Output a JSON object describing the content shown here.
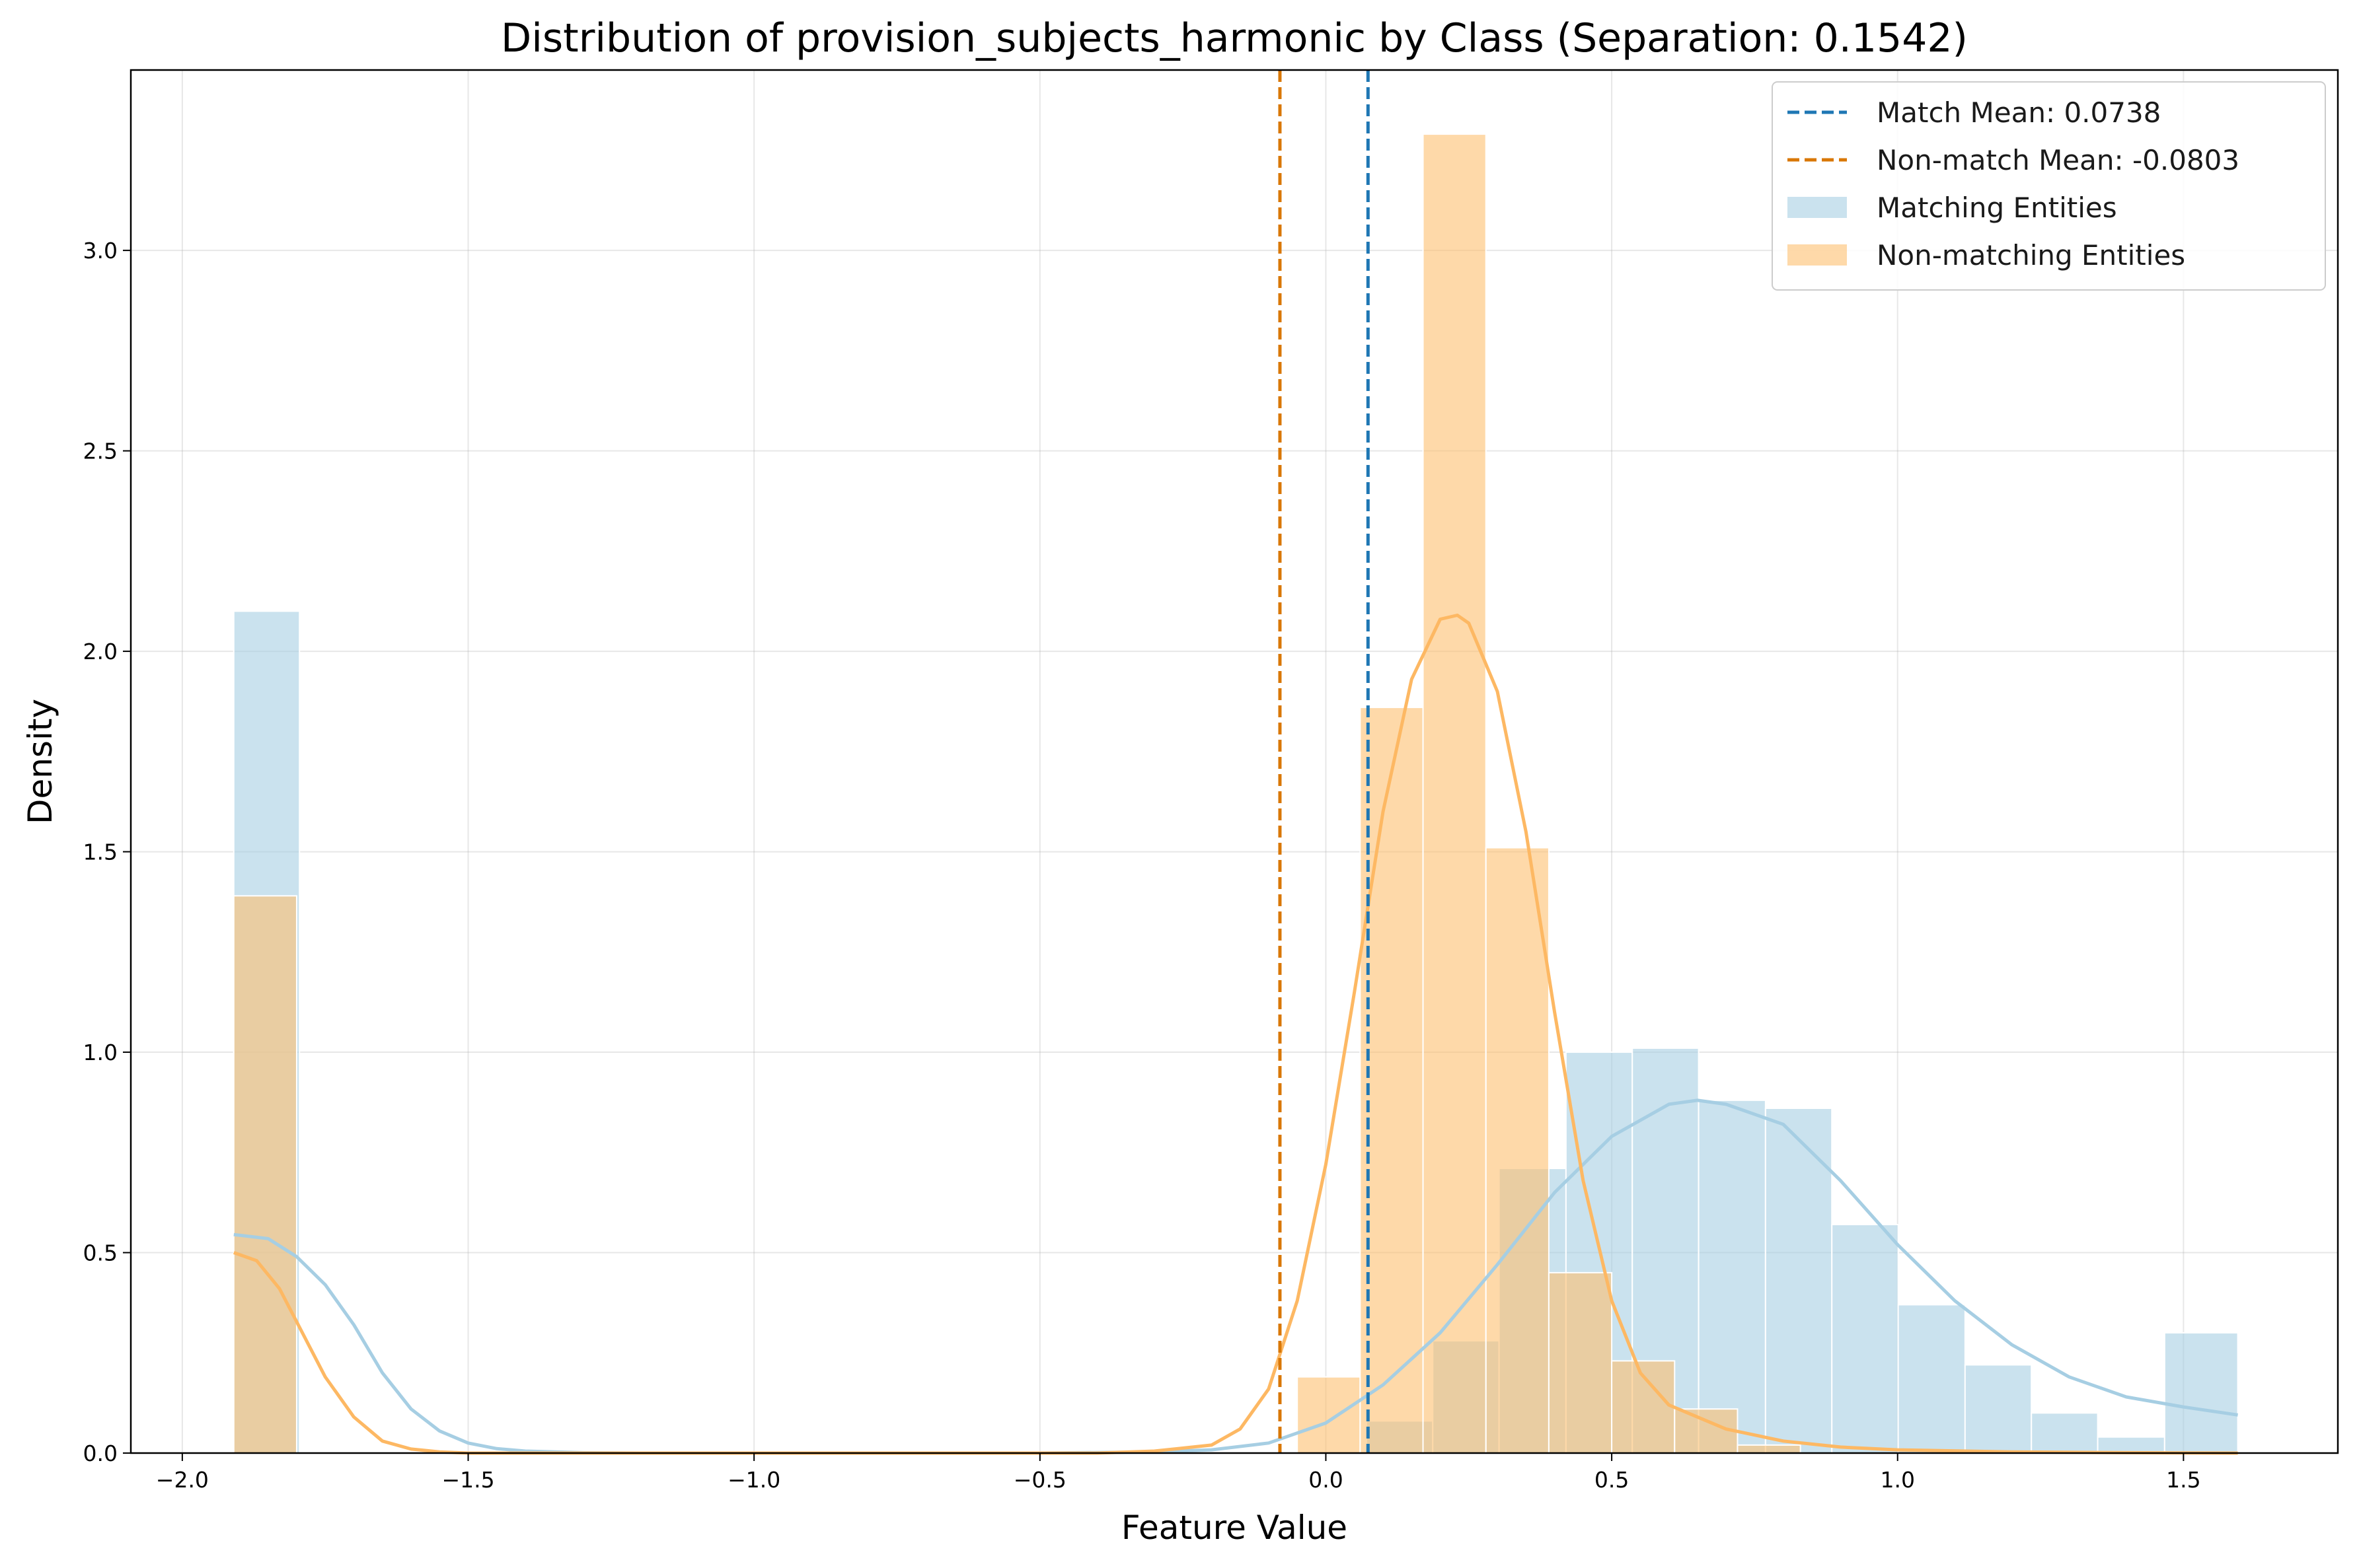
{
  "chart_data": {
    "type": "histogram",
    "title": "Distribution of provision_subjects_harmonic by Class (Separation: 0.1542)",
    "xlabel": "Feature Value",
    "ylabel": "Density",
    "xlim": [
      -2.09,
      1.77
    ],
    "ylim": [
      0,
      3.45
    ],
    "xticks": [
      -2.0,
      -1.5,
      -1.0,
      -0.5,
      0.0,
      0.5,
      1.0,
      1.5
    ],
    "xtick_labels": [
      "−2.0",
      "−1.5",
      "−1.0",
      "−0.5",
      "0.0",
      "0.5",
      "1.0",
      "1.5"
    ],
    "yticks": [
      0.0,
      0.5,
      1.0,
      1.5,
      2.0,
      2.5,
      3.0
    ],
    "ytick_labels": [
      "0.0",
      "0.5",
      "1.0",
      "1.5",
      "2.0",
      "2.5",
      "3.0"
    ],
    "grid": true,
    "legend_position": "top-right",
    "series": [
      {
        "name": "Matching Entities",
        "kind": "histogram",
        "color": "#a6cee3",
        "opacity": 0.6,
        "bins": [
          {
            "x0": -1.91,
            "x1": -1.795,
            "value": 2.1
          },
          {
            "x0": 0.071,
            "x1": 0.187,
            "value": 0.08
          },
          {
            "x0": 0.187,
            "x1": 0.303,
            "value": 0.28
          },
          {
            "x0": 0.303,
            "x1": 0.42,
            "value": 0.71
          },
          {
            "x0": 0.42,
            "x1": 0.536,
            "value": 1.0
          },
          {
            "x0": 0.536,
            "x1": 0.652,
            "value": 1.01
          },
          {
            "x0": 0.652,
            "x1": 0.769,
            "value": 0.88
          },
          {
            "x0": 0.769,
            "x1": 0.885,
            "value": 0.86
          },
          {
            "x0": 0.885,
            "x1": 1.001,
            "value": 0.57
          },
          {
            "x0": 1.001,
            "x1": 1.118,
            "value": 0.37
          },
          {
            "x0": 1.118,
            "x1": 1.234,
            "value": 0.22
          },
          {
            "x0": 1.234,
            "x1": 1.35,
            "value": 0.1
          },
          {
            "x0": 1.35,
            "x1": 1.467,
            "value": 0.04
          },
          {
            "x0": 1.467,
            "x1": 1.595,
            "value": 0.3
          }
        ]
      },
      {
        "name": "Non-matching Entities",
        "kind": "histogram",
        "color": "#fdbf6f",
        "opacity": 0.6,
        "bins": [
          {
            "x0": -1.91,
            "x1": -1.8,
            "value": 1.39
          },
          {
            "x0": -0.05,
            "x1": 0.06,
            "value": 0.19
          },
          {
            "x0": 0.06,
            "x1": 0.17,
            "value": 1.86
          },
          {
            "x0": 0.17,
            "x1": 0.28,
            "value": 3.29
          },
          {
            "x0": 0.28,
            "x1": 0.39,
            "value": 1.51
          },
          {
            "x0": 0.39,
            "x1": 0.5,
            "value": 0.45
          },
          {
            "x0": 0.5,
            "x1": 0.61,
            "value": 0.23
          },
          {
            "x0": 0.61,
            "x1": 0.72,
            "value": 0.11
          },
          {
            "x0": 0.72,
            "x1": 0.83,
            "value": 0.02
          }
        ]
      },
      {
        "name": "Matching Entities KDE",
        "kind": "line",
        "color": "#a6cee3",
        "points": [
          [
            -1.91,
            0.545
          ],
          [
            -1.85,
            0.535
          ],
          [
            -1.8,
            0.49
          ],
          [
            -1.75,
            0.42
          ],
          [
            -1.7,
            0.32
          ],
          [
            -1.65,
            0.2
          ],
          [
            -1.6,
            0.11
          ],
          [
            -1.55,
            0.055
          ],
          [
            -1.5,
            0.025
          ],
          [
            -1.45,
            0.011
          ],
          [
            -1.4,
            0.005
          ],
          [
            -1.3,
            0.001
          ],
          [
            -1.2,
            0.0
          ],
          [
            -0.5,
            0.0
          ],
          [
            -0.3,
            0.003
          ],
          [
            -0.2,
            0.008
          ],
          [
            -0.1,
            0.025
          ],
          [
            0.0,
            0.075
          ],
          [
            0.1,
            0.17
          ],
          [
            0.2,
            0.3
          ],
          [
            0.3,
            0.47
          ],
          [
            0.4,
            0.65
          ],
          [
            0.5,
            0.79
          ],
          [
            0.6,
            0.87
          ],
          [
            0.65,
            0.88
          ],
          [
            0.7,
            0.87
          ],
          [
            0.8,
            0.82
          ],
          [
            0.9,
            0.68
          ],
          [
            1.0,
            0.52
          ],
          [
            1.1,
            0.38
          ],
          [
            1.2,
            0.27
          ],
          [
            1.3,
            0.19
          ],
          [
            1.4,
            0.14
          ],
          [
            1.5,
            0.115
          ],
          [
            1.595,
            0.095
          ]
        ]
      },
      {
        "name": "Non-matching Entities KDE",
        "kind": "line",
        "color": "#fdb863",
        "points": [
          [
            -1.91,
            0.5
          ],
          [
            -1.87,
            0.48
          ],
          [
            -1.83,
            0.41
          ],
          [
            -1.79,
            0.3
          ],
          [
            -1.75,
            0.19
          ],
          [
            -1.7,
            0.09
          ],
          [
            -1.65,
            0.03
          ],
          [
            -1.6,
            0.01
          ],
          [
            -1.55,
            0.003
          ],
          [
            -1.5,
            0.0
          ],
          [
            -0.4,
            0.0
          ],
          [
            -0.3,
            0.005
          ],
          [
            -0.2,
            0.02
          ],
          [
            -0.15,
            0.06
          ],
          [
            -0.1,
            0.16
          ],
          [
            -0.05,
            0.38
          ],
          [
            0.0,
            0.72
          ],
          [
            0.05,
            1.15
          ],
          [
            0.1,
            1.6
          ],
          [
            0.15,
            1.93
          ],
          [
            0.2,
            2.08
          ],
          [
            0.23,
            2.09
          ],
          [
            0.25,
            2.07
          ],
          [
            0.3,
            1.9
          ],
          [
            0.35,
            1.55
          ],
          [
            0.4,
            1.1
          ],
          [
            0.45,
            0.68
          ],
          [
            0.5,
            0.38
          ],
          [
            0.55,
            0.2
          ],
          [
            0.6,
            0.12
          ],
          [
            0.7,
            0.06
          ],
          [
            0.8,
            0.03
          ],
          [
            0.9,
            0.015
          ],
          [
            1.0,
            0.008
          ],
          [
            1.2,
            0.003
          ],
          [
            1.4,
            0.001
          ],
          [
            1.595,
            0.0
          ]
        ]
      }
    ],
    "reference_lines": [
      {
        "name": "Match Mean: 0.0738",
        "x": 0.0738,
        "color": "#1f77b4",
        "style": "dashed"
      },
      {
        "name": "Non-match Mean: -0.0803",
        "x": -0.0803,
        "color": "#d97706",
        "style": "dashed"
      }
    ],
    "legend": [
      {
        "label": "Match Mean: 0.0738",
        "type": "dashed-line",
        "color": "#1f77b4"
      },
      {
        "label": "Non-match Mean: -0.0803",
        "type": "dashed-line",
        "color": "#d97706"
      },
      {
        "label": "Matching Entities",
        "type": "patch",
        "color": "#a6cee3"
      },
      {
        "label": "Non-matching Entities",
        "type": "patch",
        "color": "#fdbf6f"
      }
    ]
  }
}
